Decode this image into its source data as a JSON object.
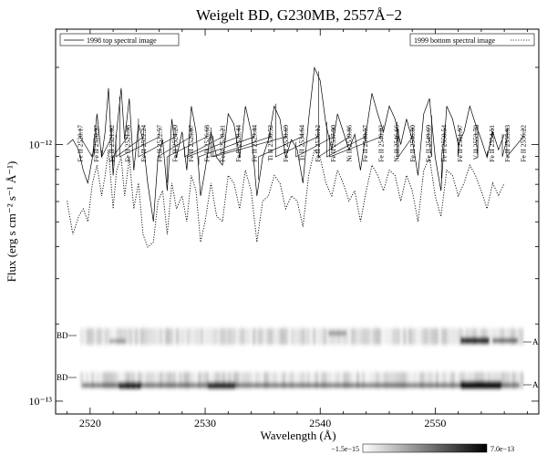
{
  "chart_data": {
    "type": "line",
    "title": "Weigelt BD, G230MB, 2557Å−2",
    "xlabel": "Wavelength (Å)",
    "ylabel": "Flux (erg s cm⁻² s⁻¹ Å⁻¹)",
    "xlim": [
      2517,
      2559
    ],
    "ylim_log10": [
      -13.05,
      -11.55
    ],
    "y_scale": "log",
    "x_ticks": [
      2520,
      2530,
      2540,
      2550
    ],
    "y_tick_labels": [
      "10⁻¹²",
      "10⁻¹³"
    ],
    "y_tick_values": [
      1e-12,
      1e-13
    ],
    "legend": [
      {
        "label": "1998 top spectral image",
        "style": "solid",
        "position": "top-left"
      },
      {
        "label": "1999 bottom spectral image",
        "style": "dotted",
        "position": "top-right"
      }
    ],
    "line_ids": [
      {
        "label": "Fe II 2520.17",
        "wavelength": 2520.17
      },
      {
        "label": "Fe II 2520.32",
        "wavelength": 2520.32
      },
      {
        "label": "Fe II 2521.02",
        "wavelength": 2521.02
      },
      {
        "label": "Fe II 2521.98",
        "wavelength": 2521.98
      },
      {
        "label": "Fe II 2522.24",
        "wavelength": 2522.24
      },
      {
        "label": "Fe II 2522.57",
        "wavelength": 2522.57
      },
      {
        "label": "Fe II 2524.20",
        "wavelength": 2524.2
      },
      {
        "label": "Fe II 2525.87",
        "wavelength": 2525.87
      },
      {
        "label": "Fe II 2526.68",
        "wavelength": 2526.68
      },
      {
        "label": "Fe II 2528.21",
        "wavelength": 2528.21
      },
      {
        "label": "Fe II 2528.44",
        "wavelength": 2528.44
      },
      {
        "label": "Fe II 2529.44",
        "wavelength": 2529.44
      },
      {
        "label": "Ti II 2530.52",
        "wavelength": 2530.52
      },
      {
        "label": "Fe II 2530.69",
        "wavelength": 2530.69
      },
      {
        "label": "Ti II 2534.64",
        "wavelength": 2534.64
      },
      {
        "label": "Fe II 2536.12",
        "wavelength": 2536.12
      },
      {
        "label": "Fe II 2537.90",
        "wavelength": 2537.9
      },
      {
        "label": "Ni II 2539.86",
        "wavelength": 2539.86
      },
      {
        "label": "Fe II 2540.57",
        "wavelength": 2540.57
      },
      {
        "label": "Fe II 2540.82",
        "wavelength": 2540.82
      },
      {
        "label": "Ni II 2546.66",
        "wavelength": 2546.66
      },
      {
        "label": "Fe II 2546.80",
        "wavelength": 2546.8
      },
      {
        "label": "Fe II 2549.69",
        "wavelength": 2549.69
      },
      {
        "label": "Fe II 2550.54",
        "wavelength": 2550.54
      },
      {
        "label": "Fe II 2551.97",
        "wavelength": 2551.97
      },
      {
        "label": "V II 2553.70",
        "wavelength": 2553.7
      },
      {
        "label": "Fe II 2554.51",
        "wavelength": 2554.51
      },
      {
        "label": "Fe II 2555.83",
        "wavelength": 2555.83
      },
      {
        "label": "Fe II 2556.22",
        "wavelength": 2556.22
      }
    ],
    "series": [
      {
        "name": "1998 top spectral image",
        "style": "solid",
        "x": [
          2518.0,
          2518.5,
          2519.0,
          2519.4,
          2519.8,
          2520.2,
          2520.6,
          2521.0,
          2521.3,
          2521.6,
          2522.0,
          2522.3,
          2522.7,
          2523.0,
          2523.4,
          2523.8,
          2524.2,
          2524.6,
          2525.0,
          2525.5,
          2525.9,
          2526.3,
          2526.7,
          2527.1,
          2527.5,
          2528.0,
          2528.4,
          2528.8,
          2529.2,
          2529.6,
          2530.0,
          2530.5,
          2531.0,
          2531.5,
          2532.0,
          2532.5,
          2533.0,
          2533.5,
          2534.0,
          2534.5,
          2535.0,
          2535.5,
          2536.0,
          2536.5,
          2537.0,
          2537.5,
          2538.0,
          2538.5,
          2539.0,
          2539.5,
          2540.0,
          2540.5,
          2541.0,
          2541.5,
          2542.0,
          2542.5,
          2543.0,
          2543.5,
          2544.0,
          2544.5,
          2545.0,
          2545.5,
          2546.0,
          2546.5,
          2547.0,
          2547.5,
          2548.0,
          2548.5,
          2549.0,
          2549.5,
          2550.0,
          2550.5,
          2551.0,
          2551.5,
          2552.0,
          2552.5,
          2553.0,
          2553.5,
          2554.0,
          2554.5,
          2555.0,
          2555.5,
          2556.0
        ],
        "log10_flux": [
          -12.0,
          -11.98,
          -12.02,
          -12.1,
          -12.15,
          -12.05,
          -11.88,
          -12.05,
          -11.95,
          -11.78,
          -12.12,
          -11.95,
          -11.78,
          -11.98,
          -11.82,
          -12.1,
          -11.92,
          -11.98,
          -12.15,
          -12.3,
          -12.05,
          -11.98,
          -12.18,
          -11.9,
          -12.05,
          -11.95,
          -12.1,
          -11.85,
          -11.95,
          -12.2,
          -12.1,
          -11.95,
          -12.05,
          -12.08,
          -11.88,
          -11.92,
          -12.05,
          -11.85,
          -11.95,
          -12.2,
          -12.05,
          -11.98,
          -11.85,
          -11.9,
          -12.05,
          -11.98,
          -12.02,
          -12.15,
          -11.9,
          -11.7,
          -11.75,
          -11.92,
          -12.02,
          -11.88,
          -11.95,
          -12.02,
          -11.96,
          -12.1,
          -11.95,
          -11.8,
          -11.88,
          -11.95,
          -11.85,
          -11.9,
          -12.0,
          -11.9,
          -11.98,
          -12.12,
          -11.88,
          -11.82,
          -12.05,
          -12.18,
          -11.85,
          -11.9,
          -12.0,
          -11.95,
          -11.85,
          -11.92,
          -11.98,
          -12.05,
          -11.95,
          -12.02,
          -11.96
        ]
      },
      {
        "name": "1999 bottom spectral image",
        "style": "dotted",
        "x": [
          2518.0,
          2518.5,
          2519.0,
          2519.4,
          2519.8,
          2520.2,
          2520.6,
          2521.0,
          2521.3,
          2521.6,
          2522.0,
          2522.3,
          2522.7,
          2523.0,
          2523.4,
          2523.8,
          2524.2,
          2524.6,
          2525.0,
          2525.5,
          2525.9,
          2526.3,
          2526.7,
          2527.1,
          2527.5,
          2528.0,
          2528.4,
          2528.8,
          2529.2,
          2529.6,
          2530.0,
          2530.5,
          2531.0,
          2531.5,
          2532.0,
          2532.5,
          2533.0,
          2533.5,
          2534.0,
          2534.5,
          2535.0,
          2535.5,
          2536.0,
          2536.5,
          2537.0,
          2537.5,
          2538.0,
          2538.5,
          2539.0,
          2539.5,
          2540.0,
          2540.5,
          2541.0,
          2541.5,
          2542.0,
          2542.5,
          2543.0,
          2543.5,
          2544.0,
          2544.5,
          2545.0,
          2545.5,
          2546.0,
          2546.5,
          2547.0,
          2547.5,
          2548.0,
          2548.5,
          2549.0,
          2549.5,
          2550.0,
          2550.5,
          2551.0,
          2551.5,
          2552.0,
          2552.5,
          2553.0,
          2553.5,
          2554.0,
          2554.5,
          2555.0,
          2555.5,
          2556.0
        ],
        "log10_flux": [
          -12.22,
          -12.35,
          -12.28,
          -12.25,
          -12.3,
          -12.15,
          -12.08,
          -12.2,
          -12.12,
          -12.02,
          -12.25,
          -12.1,
          -12.05,
          -12.2,
          -12.05,
          -12.25,
          -12.15,
          -12.35,
          -12.4,
          -12.38,
          -12.22,
          -12.18,
          -12.35,
          -12.15,
          -12.25,
          -12.2,
          -12.3,
          -12.12,
          -12.18,
          -12.38,
          -12.3,
          -12.15,
          -12.28,
          -12.3,
          -12.12,
          -12.15,
          -12.25,
          -12.1,
          -12.18,
          -12.38,
          -12.22,
          -12.2,
          -12.12,
          -12.15,
          -12.25,
          -12.2,
          -12.22,
          -12.32,
          -12.12,
          -12.02,
          -12.05,
          -12.15,
          -12.2,
          -12.1,
          -12.15,
          -12.22,
          -12.18,
          -12.3,
          -12.18,
          -12.08,
          -12.12,
          -12.18,
          -12.1,
          -12.12,
          -12.22,
          -12.12,
          -12.18,
          -12.3,
          -12.1,
          -12.05,
          -12.2,
          -12.28,
          -12.1,
          -12.12,
          -12.2,
          -12.15,
          -12.08,
          -12.12,
          -12.18,
          -12.25,
          -12.15,
          -12.2,
          -12.15
        ]
      }
    ],
    "spectral_images": [
      {
        "name": "1998 top spectral image",
        "left_label": "BD",
        "right_label": "A"
      },
      {
        "name": "1999 bottom spectral image",
        "left_label": "BD",
        "right_label": "A"
      }
    ],
    "colorbar": {
      "min_label": "−1.5e−15",
      "max_label": "7.0e−13"
    }
  }
}
